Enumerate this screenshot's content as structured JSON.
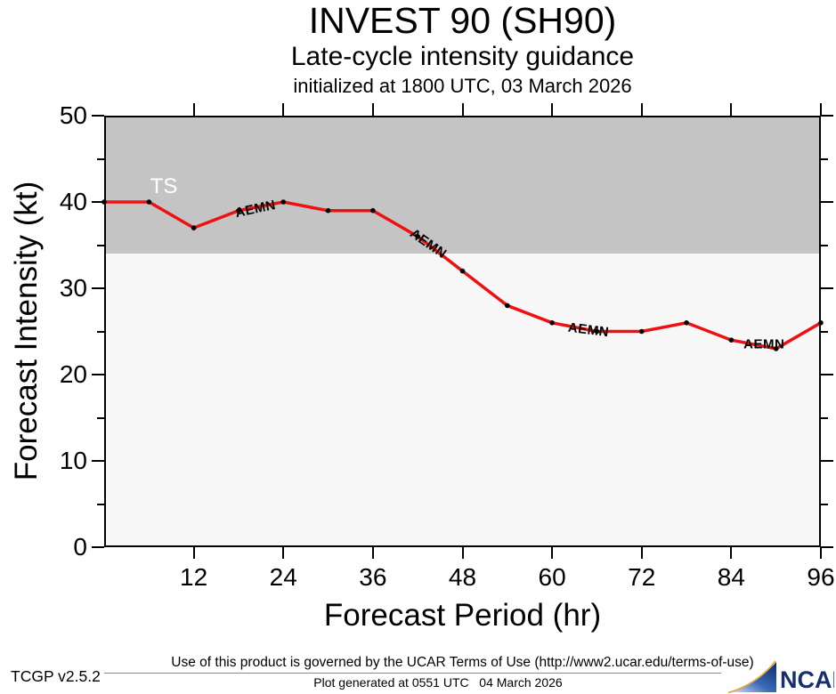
{
  "header": {
    "title": "INVEST 90 (SH90)",
    "subtitle": "Late-cycle intensity guidance",
    "init_line": "initialized at 1800 UTC, 03 March 2026"
  },
  "chart_data": {
    "type": "line",
    "title": "INVEST 90 (SH90) Late-cycle intensity guidance",
    "subtitle": "initialized at 1800 UTC, 03 March 2026",
    "xlabel": "Forecast Period (hr)",
    "ylabel": "Forecast Intensity (kt)",
    "xlim": [
      0,
      96
    ],
    "ylim": [
      0,
      50
    ],
    "x_ticks": [
      12,
      24,
      36,
      48,
      60,
      72,
      84,
      96
    ],
    "y_ticks": [
      0,
      10,
      20,
      30,
      40,
      50
    ],
    "y_minor_ticks": [
      5,
      15,
      25,
      35,
      45
    ],
    "grid": false,
    "legend_position": "none",
    "plot_bg_color": "#f7f7f7",
    "band": {
      "label": "TS",
      "from": 34,
      "to": 50,
      "color": "#c4c4c4",
      "label_color": "#ffffff"
    },
    "band_label_pos": {
      "hour": 8.0,
      "value": 41.8
    },
    "series": [
      {
        "name": "AEMN",
        "color": "#ee1111",
        "marker_color": "#000000",
        "x": [
          0,
          6,
          12,
          18,
          24,
          30,
          36,
          42,
          48,
          54,
          60,
          66,
          72,
          78,
          84,
          90,
          96
        ],
        "values": [
          40,
          40,
          37,
          39,
          40,
          39,
          39,
          36,
          32,
          28,
          26,
          25,
          25,
          26,
          24,
          23,
          26
        ]
      }
    ],
    "series_labels": [
      {
        "text": "AEMN",
        "hour": 20.3,
        "value": 39.2,
        "rotation": -12
      },
      {
        "text": "AEMN",
        "hour": 43.4,
        "value": 35.2,
        "rotation": 35
      },
      {
        "text": "AEMN",
        "hour": 64.9,
        "value": 25.2,
        "rotation": 7
      },
      {
        "text": "AEMN",
        "hour": 88.4,
        "value": 23.5,
        "rotation": 0
      }
    ]
  },
  "footer": {
    "terms": "Use of this product is governed by the UCAR Terms of Use (http://www2.ucar.edu/terms-of-use)",
    "version": "TCGP v2.5.2",
    "generated": "Plot generated at 0551 UTC   04 March 2026",
    "logo_text": "NCAR",
    "logo_color": "#16306e"
  }
}
